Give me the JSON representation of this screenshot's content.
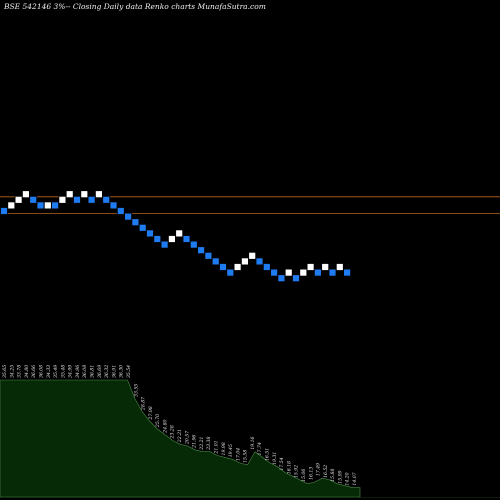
{
  "title": "BSE 542146  3%-- Closing Daily data  Renko  charts MunafaSutra.com",
  "colors": {
    "background": "#000000",
    "up_brick": "#ffffff",
    "down_brick": "#1e7bf0",
    "brick_border": "#000000",
    "level_line": "#b5651d",
    "volume_fill": "#062a06",
    "volume_line": "#4a8a4a",
    "label": "#e8e8e8"
  },
  "chart_data": {
    "type": "renko",
    "title": "BSE 542146  3%-- Closing Daily data  Renko  charts MunafaSutra.com",
    "brick_step": "3%",
    "bricks": [
      {
        "dir": "down",
        "level": 0
      },
      {
        "dir": "up",
        "level": 1
      },
      {
        "dir": "up",
        "level": 2
      },
      {
        "dir": "up",
        "level": 3
      },
      {
        "dir": "down",
        "level": 2
      },
      {
        "dir": "down",
        "level": 1
      },
      {
        "dir": "up",
        "level": 1
      },
      {
        "dir": "down",
        "level": 1
      },
      {
        "dir": "up",
        "level": 2
      },
      {
        "dir": "up",
        "level": 3
      },
      {
        "dir": "down",
        "level": 2
      },
      {
        "dir": "up",
        "level": 3
      },
      {
        "dir": "down",
        "level": 2
      },
      {
        "dir": "up",
        "level": 3
      },
      {
        "dir": "down",
        "level": 2
      },
      {
        "dir": "down",
        "level": 1
      },
      {
        "dir": "down",
        "level": 0
      },
      {
        "dir": "down",
        "level": -1
      },
      {
        "dir": "down",
        "level": -2
      },
      {
        "dir": "down",
        "level": -3
      },
      {
        "dir": "down",
        "level": -4
      },
      {
        "dir": "down",
        "level": -5
      },
      {
        "dir": "down",
        "level": -6
      },
      {
        "dir": "up",
        "level": -5
      },
      {
        "dir": "up",
        "level": -4
      },
      {
        "dir": "down",
        "level": -5
      },
      {
        "dir": "down",
        "level": -6
      },
      {
        "dir": "down",
        "level": -7
      },
      {
        "dir": "down",
        "level": -8
      },
      {
        "dir": "down",
        "level": -9
      },
      {
        "dir": "down",
        "level": -10
      },
      {
        "dir": "down",
        "level": -11
      },
      {
        "dir": "up",
        "level": -10
      },
      {
        "dir": "up",
        "level": -9
      },
      {
        "dir": "up",
        "level": -8
      },
      {
        "dir": "down",
        "level": -9
      },
      {
        "dir": "down",
        "level": -10
      },
      {
        "dir": "down",
        "level": -11
      },
      {
        "dir": "down",
        "level": -12
      },
      {
        "dir": "up",
        "level": -11
      },
      {
        "dir": "down",
        "level": -12
      },
      {
        "dir": "up",
        "level": -11
      },
      {
        "dir": "up",
        "level": -10
      },
      {
        "dir": "down",
        "level": -11
      },
      {
        "dir": "up",
        "level": -10
      },
      {
        "dir": "down",
        "level": -11
      },
      {
        "dir": "up",
        "level": -10
      },
      {
        "dir": "down",
        "level": -11
      }
    ],
    "horizontal_levels": [
      2,
      -1
    ],
    "labels": [
      "35.65",
      "34.25",
      "33.78",
      "34.80",
      "36.66",
      "36.08",
      "34.33",
      "35.49",
      "35.48",
      "34.99",
      "34.96",
      "36.08",
      "36.81",
      "36.69",
      "36.32",
      "36.91",
      "36.30",
      "35.54",
      "33.55",
      "28.87",
      "27.98",
      "25.70",
      "24.80",
      "23.28",
      "22.21",
      "20.57",
      "21.96",
      "22.21",
      "23.38",
      "21.01",
      "19.98",
      "19.45",
      "17.04",
      "15.58",
      "19.16",
      "17.74",
      "16.51",
      "19.31",
      "17.54",
      "16.18",
      "15.92",
      "15.06",
      "16.13",
      "17.49",
      "16.52",
      "15.88",
      "15.99",
      "14.20",
      "14.07"
    ],
    "volume_profile": [
      0.62,
      0.62,
      0.62,
      0.62,
      0.62,
      0.62,
      0.62,
      0.62,
      0.62,
      0.62,
      0.62,
      0.62,
      0.62,
      0.62,
      0.62,
      0.62,
      0.62,
      0.62,
      0.52,
      0.45,
      0.4,
      0.36,
      0.33,
      0.3,
      0.28,
      0.27,
      0.25,
      0.24,
      0.24,
      0.22,
      0.21,
      0.2,
      0.18,
      0.17,
      0.24,
      0.21,
      0.18,
      0.16,
      0.13,
      0.11,
      0.09,
      0.07,
      0.08,
      0.1,
      0.09,
      0.07,
      0.06,
      0.05,
      0.05
    ]
  }
}
